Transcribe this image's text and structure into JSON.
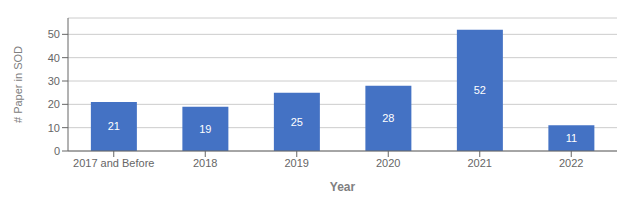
{
  "chart_data": {
    "type": "bar",
    "categories": [
      "2017 and Before",
      "2018",
      "2019",
      "2020",
      "2021",
      "2022"
    ],
    "values": [
      21,
      19,
      25,
      28,
      52,
      11
    ],
    "color": "#4472C4",
    "xlabel": "Year",
    "ylabel": "# Paper in SOD",
    "ylim": [
      0,
      57
    ],
    "yticks": [
      0,
      10,
      20,
      30,
      40,
      50
    ],
    "grid": true,
    "data_labels": true
  }
}
